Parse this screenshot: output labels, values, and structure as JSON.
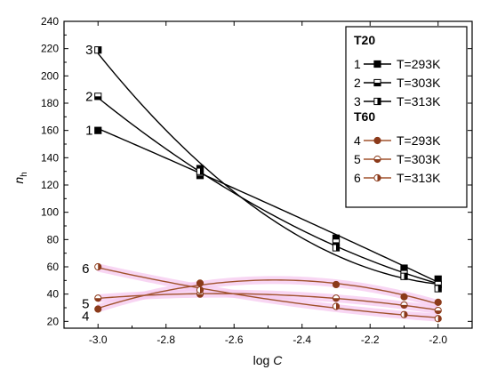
{
  "chart_data": {
    "type": "scatter",
    "xlabel_plain": "log ",
    "xlabel_italic": "C",
    "ylabel_main": "n",
    "ylabel_sub": "h",
    "xlim": [
      -3.1,
      -1.9
    ],
    "ylim": [
      15,
      240
    ],
    "xticks": [
      -3.0,
      -2.8,
      -2.6,
      -2.4,
      -2.2,
      -2.0
    ],
    "xtick_labels": [
      "-3.0",
      "-2.8",
      "-2.6",
      "-2.4",
      "-2.2",
      "-2.0"
    ],
    "yticks": [
      20,
      40,
      60,
      80,
      100,
      120,
      140,
      160,
      180,
      200,
      220,
      240
    ],
    "ytick_labels": [
      "20",
      "40",
      "60",
      "80",
      "100",
      "120",
      "140",
      "160",
      "180",
      "200",
      "220",
      "240"
    ],
    "x": [
      -3.0,
      -2.7,
      -2.3,
      -2.1,
      -2.0
    ],
    "groups": [
      {
        "title": "T20",
        "color": "#000000"
      },
      {
        "title": "T60",
        "color": "#c0392b"
      }
    ],
    "series": [
      {
        "id": "1",
        "label": "1",
        "name": "T=293K",
        "group": 0,
        "marker": "square-filled",
        "color": "#000000",
        "line_color": "#000000",
        "values": [
          160,
          132,
          81,
          59,
          51
        ]
      },
      {
        "id": "2",
        "label": "2",
        "name": "T=303K",
        "group": 0,
        "marker": "square-half-bottom",
        "color": "#000000",
        "line_color": "#000000",
        "values": [
          185,
          127,
          78,
          55,
          47
        ]
      },
      {
        "id": "3",
        "label": "3",
        "name": "T=313K",
        "group": 0,
        "marker": "square-half-right",
        "color": "#000000",
        "line_color": "#000000",
        "values": [
          219,
          130,
          74,
          53,
          44
        ]
      },
      {
        "id": "4",
        "label": "4",
        "name": "T=293K",
        "group": 1,
        "marker": "circle-filled",
        "color": "#8b3a1a",
        "line_color": "#a0522d",
        "values": [
          29,
          48,
          47,
          38,
          34
        ]
      },
      {
        "id": "5",
        "label": "5",
        "name": "T=303K",
        "group": 1,
        "marker": "circle-half-bottom",
        "color": "#8b3a1a",
        "line_color": "#a0522d",
        "values": [
          37,
          40,
          37,
          32,
          28
        ]
      },
      {
        "id": "6",
        "label": "6",
        "name": "T=313K",
        "group": 1,
        "marker": "circle-half-right",
        "color": "#8b3a1a",
        "line_color": "#a0522d",
        "values": [
          60,
          43,
          31,
          25,
          22
        ]
      }
    ],
    "legend_position": "top-right"
  }
}
